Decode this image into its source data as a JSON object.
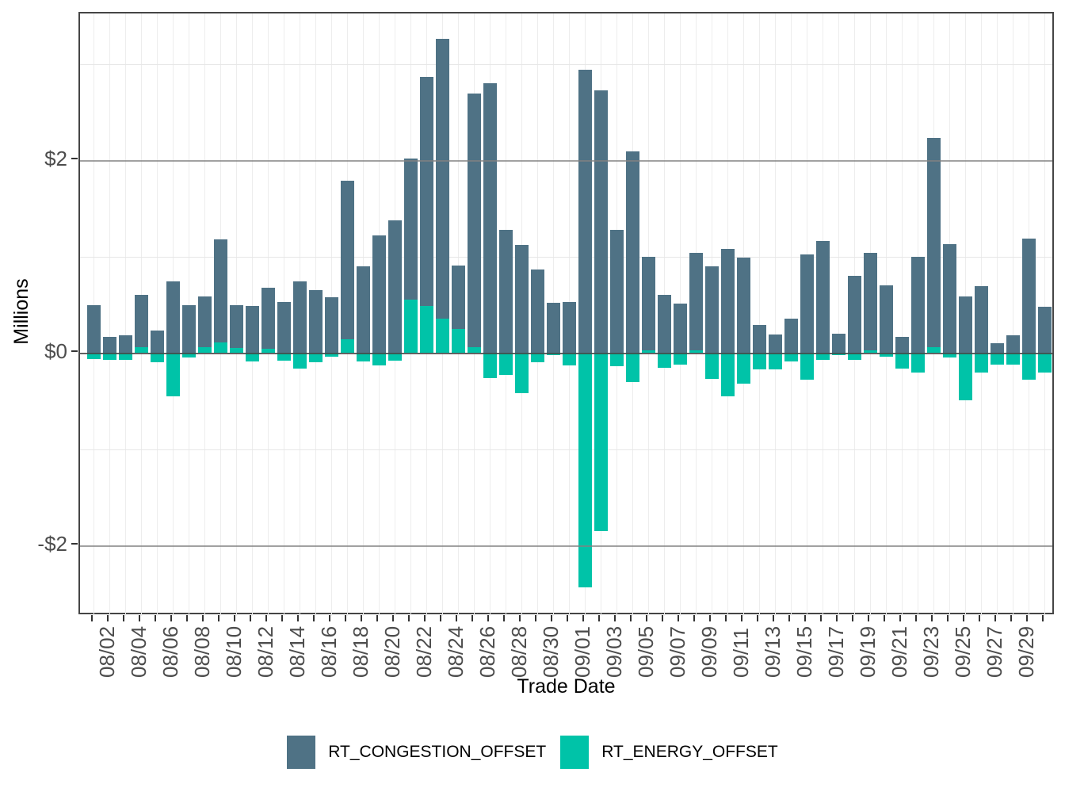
{
  "figure": {
    "x_axis_title": "Trade Date",
    "y_axis_title": "Millions"
  },
  "y_ticks": [
    {
      "label": "$2",
      "value": 2
    },
    {
      "label": "$0",
      "value": 0
    },
    {
      "label": "-$2",
      "value": -2
    }
  ],
  "legend": [
    {
      "label": "RT_CONGESTION_OFFSET",
      "color": "#4f7285"
    },
    {
      "label": "RT_ENERGY_OFFSET",
      "color": "#00c3a8"
    }
  ],
  "colors": {
    "congestion": "#4f7285",
    "energy": "#00c3a8",
    "axis_text": "#4d4d4d",
    "panel_border": "#454545",
    "minor_grid": "#e7e7e7",
    "major_grid": "#828282"
  },
  "chart_data": {
    "type": "bar",
    "stacked": true,
    "title": "",
    "xlabel": "Trade Date",
    "ylabel": "Millions",
    "ylim": [
      -2.75,
      3.55
    ],
    "y_major_gridlines": [
      2,
      -2
    ],
    "y_minor_gridlines": [
      3,
      1,
      -1
    ],
    "x_label_every_n_days": 2,
    "legend_position": "bottom",
    "categories": [
      "08/01",
      "08/02",
      "08/03",
      "08/04",
      "08/05",
      "08/06",
      "08/07",
      "08/08",
      "08/09",
      "08/10",
      "08/11",
      "08/12",
      "08/13",
      "08/14",
      "08/15",
      "08/16",
      "08/17",
      "08/18",
      "08/19",
      "08/20",
      "08/21",
      "08/22",
      "08/23",
      "08/24",
      "08/25",
      "08/26",
      "08/27",
      "08/28",
      "08/29",
      "08/30",
      "08/31",
      "09/01",
      "09/02",
      "09/03",
      "09/04",
      "09/05",
      "09/06",
      "09/07",
      "09/08",
      "09/09",
      "09/10",
      "09/11",
      "09/12",
      "09/13",
      "09/14",
      "09/15",
      "09/16",
      "09/17",
      "09/18",
      "09/19",
      "09/20",
      "09/21",
      "09/22",
      "09/23",
      "09/24",
      "09/25",
      "09/26",
      "09/27",
      "09/28",
      "09/29",
      "09/30"
    ],
    "x_tick_labels": [
      "08/02",
      "08/04",
      "08/06",
      "08/08",
      "08/10",
      "08/12",
      "08/14",
      "08/16",
      "08/18",
      "08/20",
      "08/22",
      "08/24",
      "08/26",
      "08/28",
      "08/30",
      "09/01",
      "09/03",
      "09/05",
      "09/07",
      "09/09",
      "09/11",
      "09/13",
      "09/15",
      "09/17",
      "09/19",
      "09/21",
      "09/23",
      "09/25",
      "09/27",
      "09/29"
    ],
    "series": [
      {
        "name": "RT_CONGESTION_OFFSET",
        "color": "#4f7285",
        "values": [
          0.5,
          0.17,
          0.18,
          0.54,
          0.23,
          0.74,
          0.5,
          0.53,
          1.07,
          0.45,
          0.49,
          0.64,
          0.53,
          0.74,
          0.65,
          0.58,
          1.65,
          0.9,
          1.22,
          1.38,
          1.47,
          2.38,
          2.9,
          0.66,
          2.63,
          2.8,
          1.28,
          1.12,
          0.87,
          0.52,
          0.53,
          2.94,
          2.73,
          1.28,
          2.09,
          0.97,
          0.6,
          0.51,
          1.01,
          0.9,
          1.08,
          0.99,
          0.29,
          0.19,
          0.36,
          1.02,
          1.16,
          0.2,
          0.8,
          1.01,
          0.7,
          0.17,
          1.0,
          2.17,
          1.13,
          0.59,
          0.69,
          0.1,
          0.18,
          1.19,
          0.48
        ]
      },
      {
        "name": "RT_ENERGY_OFFSET",
        "color": "#00c3a8",
        "values": [
          -0.06,
          -0.07,
          -0.07,
          0.06,
          -0.1,
          -0.45,
          -0.05,
          0.06,
          0.11,
          0.05,
          -0.09,
          0.04,
          -0.08,
          -0.16,
          -0.1,
          -0.04,
          0.14,
          -0.09,
          -0.13,
          -0.08,
          0.55,
          0.49,
          0.36,
          0.25,
          0.06,
          -0.26,
          -0.23,
          -0.42,
          -0.1,
          -0.02,
          -0.13,
          -2.43,
          -1.85,
          -0.14,
          -0.3,
          0.03,
          -0.15,
          -0.12,
          0.03,
          -0.27,
          -0.45,
          -0.32,
          -0.17,
          -0.17,
          -0.09,
          -0.28,
          -0.07,
          -0.02,
          -0.07,
          0.03,
          -0.04,
          -0.16,
          -0.2,
          0.06,
          -0.05,
          -0.49,
          -0.2,
          -0.12,
          -0.12,
          -0.28,
          -0.2
        ]
      }
    ]
  }
}
